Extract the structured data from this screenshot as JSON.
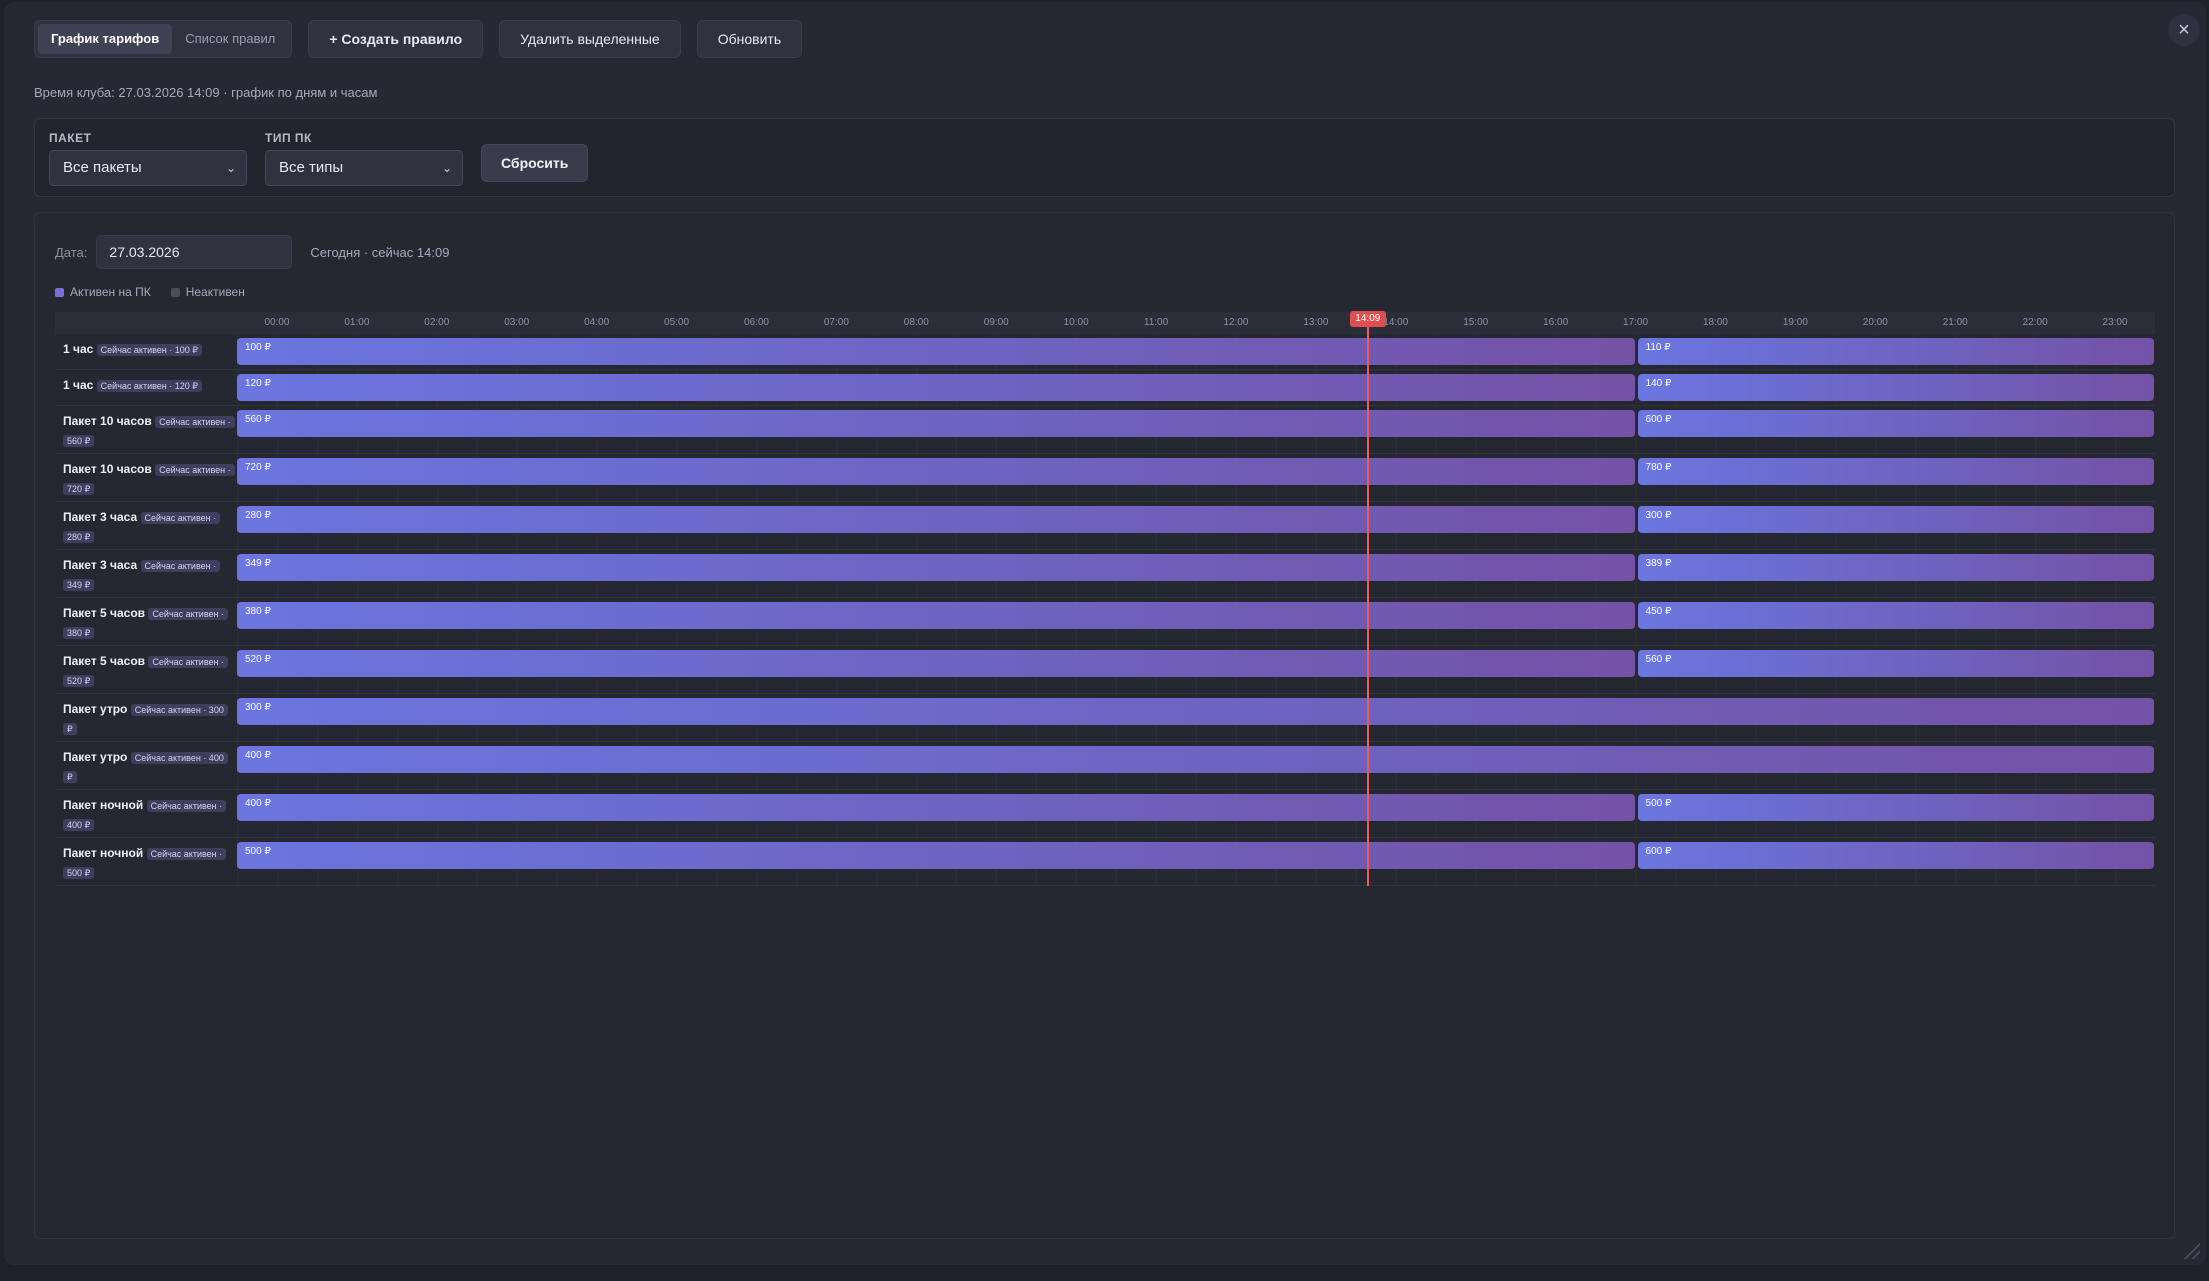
{
  "toolbar": {
    "tabs": [
      "График тарифов",
      "Список правил"
    ],
    "create_label": "+ Создать правило",
    "delete_label": "Удалить выделенные",
    "refresh_label": "Обновить",
    "close_symbol": "×"
  },
  "subtitle": "Время клуба: 27.03.2026 14:09 · график по дням и часам",
  "filters": {
    "package": {
      "label": "ПАКЕТ",
      "value": "Все пакеты"
    },
    "pc_type": {
      "label": "ТИП ПК",
      "value": "Все типы"
    },
    "reset_label": "Сбросить"
  },
  "schedule": {
    "date_label": "Дата:",
    "date_value": "27.03.2026",
    "today_text": "Сегодня · сейчас 14:09",
    "legend": [
      {
        "label": "Активен на ПК",
        "color": "#7b6fd6"
      },
      {
        "label": "Неактивен",
        "color": "#4a4c5a"
      }
    ],
    "hours": [
      "00:00",
      "01:00",
      "02:00",
      "03:00",
      "04:00",
      "05:00",
      "06:00",
      "07:00",
      "08:00",
      "09:00",
      "10:00",
      "11:00",
      "12:00",
      "13:00",
      "14:00",
      "15:00",
      "16:00",
      "17:00",
      "18:00",
      "19:00",
      "20:00",
      "21:00",
      "22:00",
      "23:00"
    ],
    "now_label": "14:09",
    "now_hours": 14.15,
    "rows": [
      {
        "name": "1 час",
        "tag": "Сейчас активен · 100 ₽",
        "segments": [
          {
            "from": 0,
            "to": 17.5,
            "price": "100 ₽"
          },
          {
            "from": 17.5,
            "to": 24,
            "price": "110 ₽"
          }
        ]
      },
      {
        "name": "1 час",
        "tag": "Сейчас активен · 120 ₽",
        "segments": [
          {
            "from": 0,
            "to": 17.5,
            "price": "120 ₽"
          },
          {
            "from": 17.5,
            "to": 24,
            "price": "140 ₽"
          }
        ]
      },
      {
        "name": "Пакет 10 часов",
        "tag": "Сейчас активен · 560 ₽",
        "segments": [
          {
            "from": 0,
            "to": 17.5,
            "price": "560 ₽"
          },
          {
            "from": 17.5,
            "to": 24,
            "price": "600 ₽"
          }
        ]
      },
      {
        "name": "Пакет 10 часов",
        "tag": "Сейчас активен · 720 ₽",
        "segments": [
          {
            "from": 0,
            "to": 17.5,
            "price": "720 ₽"
          },
          {
            "from": 17.5,
            "to": 24,
            "price": "780 ₽"
          }
        ]
      },
      {
        "name": "Пакет 3 часа",
        "tag": "Сейчас активен · 280 ₽",
        "segments": [
          {
            "from": 0,
            "to": 17.5,
            "price": "280 ₽"
          },
          {
            "from": 17.5,
            "to": 24,
            "price": "300 ₽"
          }
        ]
      },
      {
        "name": "Пакет 3 часа",
        "tag": "Сейчас активен · 349 ₽",
        "segments": [
          {
            "from": 0,
            "to": 17.5,
            "price": "349 ₽"
          },
          {
            "from": 17.5,
            "to": 24,
            "price": "389 ₽"
          }
        ]
      },
      {
        "name": "Пакет 5 часов",
        "tag": "Сейчас активен · 380 ₽",
        "segments": [
          {
            "from": 0,
            "to": 17.5,
            "price": "380 ₽"
          },
          {
            "from": 17.5,
            "to": 24,
            "price": "450 ₽"
          }
        ]
      },
      {
        "name": "Пакет 5 часов",
        "tag": "Сейчас активен · 520 ₽",
        "segments": [
          {
            "from": 0,
            "to": 17.5,
            "price": "520 ₽"
          },
          {
            "from": 17.5,
            "to": 24,
            "price": "560 ₽"
          }
        ]
      },
      {
        "name": "Пакет утро",
        "tag": "Сейчас активен · 300 ₽",
        "segments": [
          {
            "from": 0,
            "to": 24,
            "price": "300 ₽"
          }
        ]
      },
      {
        "name": "Пакет утро",
        "tag": "Сейчас активен · 400 ₽",
        "segments": [
          {
            "from": 0,
            "to": 24,
            "price": "400 ₽"
          }
        ]
      },
      {
        "name": "Пакет ночной",
        "tag": "Сейчас активен · 400 ₽",
        "segments": [
          {
            "from": 0,
            "to": 17.5,
            "price": "400 ₽"
          },
          {
            "from": 17.5,
            "to": 24,
            "price": "500 ₽"
          }
        ]
      },
      {
        "name": "Пакет ночной",
        "tag": "Сейчас активен · 500 ₽",
        "segments": [
          {
            "from": 0,
            "to": 17.5,
            "price": "500 ₽"
          },
          {
            "from": 17.5,
            "to": 24,
            "price": "600 ₽"
          }
        ]
      }
    ]
  },
  "colors": {
    "accent": "#6b76e0",
    "now_line": "#ef5a5a"
  }
}
